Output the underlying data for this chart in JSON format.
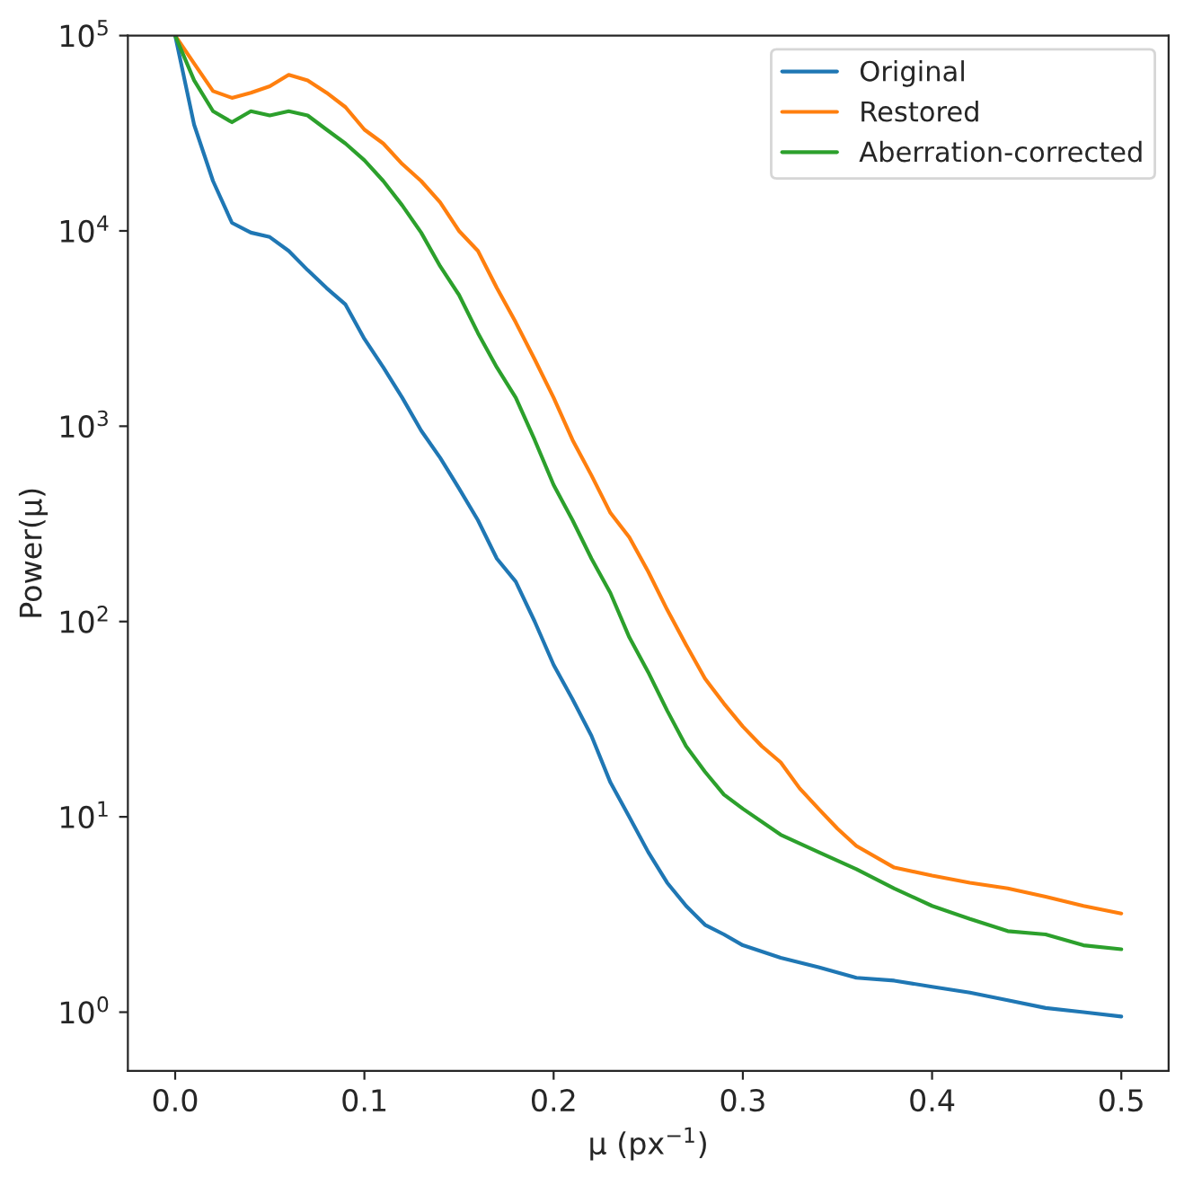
{
  "chart_data": {
    "type": "line",
    "xlabel": "μ (px$^{−1}$)",
    "ylabel": "Power(μ)",
    "log": "y",
    "grid": false,
    "legend": "top right",
    "line_style": "solid",
    "marker": "none",
    "xlim": [
      -0.025,
      0.525
    ],
    "xticks": [
      {
        "value": 0.0,
        "label": "0.0"
      },
      0.1,
      0.2,
      0.3,
      0.4,
      0.5
    ],
    "ylim": [
      0.5,
      100000
    ],
    "yticks": [
      {
        "value": 1,
        "label": "10$^{0}$"
      },
      {
        "value": 10,
        "label": "10$^{1}$"
      },
      {
        "value": 100,
        "label": "10$^{2}$"
      },
      {
        "value": 1000,
        "label": "10$^{3}$"
      },
      {
        "value": 10000,
        "label": "10$^{4}$"
      },
      {
        "value": 100000,
        "label": "10$^{5}$"
      }
    ],
    "series": [
      {
        "name": "Original",
        "color": "#1f77b4",
        "x": [
          0,
          0.01,
          0.02,
          0.03,
          0.04,
          0.05,
          0.06,
          0.07,
          0.08,
          0.09,
          0.1,
          0.11,
          0.12,
          0.13,
          0.14,
          0.15,
          0.16,
          0.17,
          0.18,
          0.19,
          0.2,
          0.21,
          0.22,
          0.23,
          0.24,
          0.25,
          0.26,
          0.27,
          0.28,
          0.29,
          0.3,
          0.32,
          0.34,
          0.36,
          0.38,
          0.4,
          0.42,
          0.44,
          0.46,
          0.48,
          0.5
        ],
        "values": [
          100000,
          35000,
          18000,
          11000,
          9800,
          9300,
          7900,
          6300,
          5100,
          4200,
          2800,
          2000,
          1400,
          950,
          690,
          480,
          330,
          210,
          160,
          100,
          60,
          40,
          26,
          15,
          10,
          6.6,
          4.6,
          3.5,
          2.8,
          2.5,
          2.2,
          1.9,
          1.7,
          1.5,
          1.45,
          1.35,
          1.26,
          1.15,
          1.05,
          1.0,
          0.95
        ]
      },
      {
        "name": "Restored",
        "color": "#ff7f0e",
        "x": [
          0,
          0.01,
          0.02,
          0.03,
          0.04,
          0.05,
          0.06,
          0.07,
          0.08,
          0.09,
          0.1,
          0.11,
          0.12,
          0.13,
          0.14,
          0.15,
          0.16,
          0.17,
          0.18,
          0.19,
          0.2,
          0.21,
          0.22,
          0.23,
          0.24,
          0.25,
          0.26,
          0.27,
          0.28,
          0.29,
          0.3,
          0.31,
          0.32,
          0.33,
          0.34,
          0.35,
          0.36,
          0.38,
          0.4,
          0.42,
          0.44,
          0.46,
          0.48,
          0.5
        ],
        "values": [
          100000,
          72000,
          52000,
          48000,
          51000,
          55000,
          63000,
          59000,
          51000,
          43000,
          33000,
          28000,
          22000,
          18000,
          14000,
          10000,
          7900,
          5100,
          3400,
          2200,
          1400,
          850,
          560,
          360,
          270,
          180,
          115,
          76,
          51,
          38,
          29,
          23,
          19,
          14,
          11,
          8.7,
          7.1,
          5.5,
          5.0,
          4.6,
          4.3,
          3.9,
          3.5,
          3.2
        ]
      },
      {
        "name": "Aberration-corrected",
        "color": "#2ca02c",
        "x": [
          0,
          0.01,
          0.02,
          0.03,
          0.04,
          0.05,
          0.06,
          0.07,
          0.08,
          0.09,
          0.1,
          0.11,
          0.12,
          0.13,
          0.14,
          0.15,
          0.16,
          0.17,
          0.18,
          0.19,
          0.2,
          0.21,
          0.22,
          0.23,
          0.24,
          0.25,
          0.26,
          0.27,
          0.28,
          0.29,
          0.3,
          0.32,
          0.34,
          0.36,
          0.38,
          0.4,
          0.42,
          0.44,
          0.46,
          0.48,
          0.5
        ],
        "values": [
          100000,
          59000,
          41000,
          36000,
          41000,
          39000,
          41000,
          39000,
          33000,
          28000,
          23000,
          18000,
          13500,
          9800,
          6600,
          4700,
          3000,
          2000,
          1400,
          850,
          500,
          330,
          210,
          140,
          83,
          55,
          35,
          23,
          17,
          13,
          11,
          8.1,
          6.6,
          5.4,
          4.3,
          3.5,
          3.0,
          2.6,
          2.5,
          2.2,
          2.1
        ]
      }
    ]
  }
}
